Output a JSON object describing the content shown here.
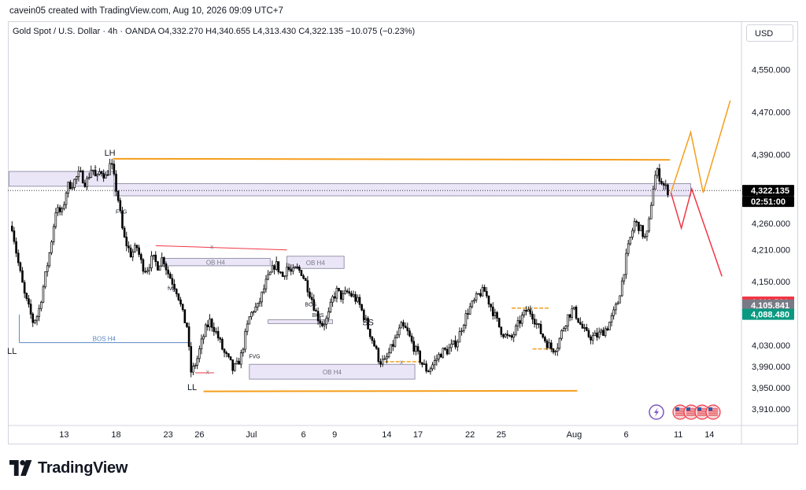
{
  "attribution": "cavein05 created with TradingView.com, Aug 10, 2026 09:09 UTC+7",
  "legend": "Gold Spot / U.S. Dollar · 4h · OANDA   O4,332.270  H4,340.655  L4,313.430  C4,322.135  −10.075 (−0.23%)",
  "currency": "USD",
  "brand": {
    "name": "TradingView",
    "logo_icon": "tradingview-logo-icon"
  },
  "colors": {
    "up": "#ffffff",
    "down": "#000000",
    "orange": "#f59e1b",
    "red": "#f23645",
    "blue": "#5b87c5",
    "zone": "#ebe6f7",
    "zone_border": "#7f7f99",
    "price_label": "#000000",
    "red_label": "#f23645",
    "gray_label": "#787b86",
    "green_label": "#089981"
  },
  "chart_data": {
    "type": "candlestick",
    "symbol": "Gold Spot / U.S. Dollar",
    "interval": "4h",
    "ylim": [
      3880,
      4600
    ],
    "y_ticks": [
      4550,
      4470,
      4390,
      4260,
      4210,
      4150,
      4030,
      3990,
      3950,
      3910
    ],
    "y_tick_labels": [
      "4,550.000",
      "4,470.000",
      "4,390.000",
      "4,260.000",
      "4,210.000",
      "4,150.000",
      "4,030.000",
      "3,990.000",
      "3,950.000",
      "3,910.000"
    ],
    "x_ticks": [
      "13",
      "18",
      "23",
      "26",
      "Jul",
      "6",
      "9",
      "14",
      "17",
      "22",
      "25",
      "Aug",
      "6",
      "11",
      "14"
    ],
    "x_tick_days": [
      -18,
      -13,
      -8,
      -5,
      0,
      5,
      8,
      13,
      16,
      21,
      24,
      31,
      36,
      41,
      44
    ],
    "x_range": [
      -23.4,
      47
    ],
    "price_labels": [
      {
        "text": "4,322.135",
        "value": 4322.135,
        "style": "price_label"
      },
      {
        "text": "02:51:00",
        "value": 4303,
        "style": "price_label"
      },
      {
        "text": "4,111.536",
        "value": 4111.536,
        "style": "red_label"
      },
      {
        "text": "4,105.841",
        "value": 4105.841,
        "style": "gray_label"
      },
      {
        "text": "4,088.480",
        "value": 4088.48,
        "style": "green_label"
      }
    ],
    "current_price": 4322.135,
    "anchors": [
      [
        -23.0,
        4255
      ],
      [
        -22.5,
        4195
      ],
      [
        -21.8,
        4125
      ],
      [
        -21.0,
        4075
      ],
      [
        -20.5,
        4088
      ],
      [
        -20.0,
        4140
      ],
      [
        -19.3,
        4215
      ],
      [
        -18.8,
        4285
      ],
      [
        -18.2,
        4280
      ],
      [
        -17.7,
        4330
      ],
      [
        -17.2,
        4335
      ],
      [
        -16.5,
        4355
      ],
      [
        -15.9,
        4335
      ],
      [
        -15.3,
        4368
      ],
      [
        -14.9,
        4340
      ],
      [
        -14.5,
        4362
      ],
      [
        -14.0,
        4348
      ],
      [
        -13.5,
        4375
      ],
      [
        -13.2,
        4345
      ],
      [
        -12.8,
        4305
      ],
      [
        -12.3,
        4235
      ],
      [
        -11.6,
        4202
      ],
      [
        -11.0,
        4215
      ],
      [
        -10.5,
        4180
      ],
      [
        -10.1,
        4172
      ],
      [
        -9.5,
        4195
      ],
      [
        -9.0,
        4180
      ],
      [
        -8.5,
        4197
      ],
      [
        -8.1,
        4170
      ],
      [
        -7.6,
        4150
      ],
      [
        -7.1,
        4130
      ],
      [
        -6.5,
        4080
      ],
      [
        -6.1,
        4062
      ],
      [
        -5.9,
        3978
      ],
      [
        -5.6,
        3985
      ],
      [
        -5.2,
        4005
      ],
      [
        -4.8,
        4035
      ],
      [
        -4.4,
        4060
      ],
      [
        -4.0,
        4075
      ],
      [
        -3.6,
        4063
      ],
      [
        -3.1,
        4040
      ],
      [
        -2.7,
        4018
      ],
      [
        -2.3,
        4005
      ],
      [
        -2.0,
        3995
      ],
      [
        -1.8,
        3984
      ],
      [
        -1.4,
        3992
      ],
      [
        -1.0,
        4010
      ],
      [
        -0.6,
        4048
      ],
      [
        -0.2,
        4082
      ],
      [
        0.2,
        4098
      ],
      [
        0.6,
        4102
      ],
      [
        1.0,
        4125
      ],
      [
        1.4,
        4148
      ],
      [
        1.9,
        4168
      ],
      [
        2.3,
        4185
      ],
      [
        2.7,
        4170
      ],
      [
        3.0,
        4160
      ],
      [
        3.4,
        4178
      ],
      [
        3.9,
        4165
      ],
      [
        4.3,
        4175
      ],
      [
        4.8,
        4168
      ],
      [
        5.3,
        4145
      ],
      [
        5.8,
        4118
      ],
      [
        6.3,
        4085
      ],
      [
        6.8,
        4070
      ],
      [
        7.3,
        4080
      ],
      [
        7.8,
        4118
      ],
      [
        8.2,
        4132
      ],
      [
        8.7,
        4120
      ],
      [
        9.2,
        4130
      ],
      [
        9.8,
        4122
      ],
      [
        10.3,
        4110
      ],
      [
        10.8,
        4085
      ],
      [
        11.3,
        4058
      ],
      [
        11.8,
        4030
      ],
      [
        12.3,
        4000
      ],
      [
        12.8,
        3998
      ],
      [
        13.3,
        4018
      ],
      [
        13.9,
        4045
      ],
      [
        14.4,
        4065
      ],
      [
        14.9,
        4058
      ],
      [
        15.4,
        4035
      ],
      [
        15.9,
        4015
      ],
      [
        16.4,
        3995
      ],
      [
        16.9,
        3982
      ],
      [
        17.3,
        3990
      ],
      [
        17.8,
        4005
      ],
      [
        18.3,
        4018
      ],
      [
        18.8,
        4020
      ],
      [
        19.3,
        4028
      ],
      [
        19.8,
        4040
      ],
      [
        20.3,
        4070
      ],
      [
        20.8,
        4095
      ],
      [
        21.4,
        4112
      ],
      [
        21.9,
        4128
      ],
      [
        22.4,
        4132
      ],
      [
        22.9,
        4108
      ],
      [
        23.4,
        4085
      ],
      [
        23.9,
        4060
      ],
      [
        24.4,
        4048
      ],
      [
        24.9,
        4040
      ],
      [
        25.4,
        4060
      ],
      [
        25.9,
        4080
      ],
      [
        26.4,
        4095
      ],
      [
        26.9,
        4092
      ],
      [
        27.4,
        4070
      ],
      [
        27.9,
        4050
      ],
      [
        28.4,
        4034
      ],
      [
        28.9,
        4022
      ],
      [
        29.4,
        4030
      ],
      [
        29.9,
        4060
      ],
      [
        30.4,
        4085
      ],
      [
        30.9,
        4098
      ],
      [
        31.3,
        4083
      ],
      [
        31.7,
        4065
      ],
      [
        32.2,
        4050
      ],
      [
        32.7,
        4045
      ],
      [
        33.2,
        4048
      ],
      [
        33.7,
        4055
      ],
      [
        34.2,
        4065
      ],
      [
        34.7,
        4085
      ],
      [
        35.2,
        4112
      ],
      [
        35.6,
        4150
      ],
      [
        36.0,
        4195
      ],
      [
        36.4,
        4232
      ],
      [
        36.8,
        4262
      ],
      [
        37.2,
        4255
      ],
      [
        37.6,
        4240
      ],
      [
        37.9,
        4228
      ],
      [
        38.2,
        4262
      ],
      [
        38.5,
        4318
      ],
      [
        38.9,
        4360
      ],
      [
        39.2,
        4348
      ],
      [
        39.6,
        4332
      ],
      [
        40.0,
        4322
      ]
    ],
    "levels": [
      {
        "kind": "orange-line",
        "from_day": -13.3,
        "to_day": 40.2,
        "price_from": 4382,
        "price_to": 4380
      },
      {
        "kind": "orange-line",
        "from_day": -4.6,
        "to_day": 31.3,
        "price_from": 3943,
        "price_to": 3944
      },
      {
        "kind": "zone",
        "from_day": -23.3,
        "to_day": -13.2,
        "top": 4358,
        "bottom": 4330
      },
      {
        "kind": "zone",
        "from_day": -13.2,
        "to_day": 42.2,
        "top": 4335,
        "bottom": 4312
      },
      {
        "kind": "zone",
        "from_day": -8.7,
        "to_day": 1.8,
        "top": 4194,
        "bottom": 4180,
        "label": "OB H4"
      },
      {
        "kind": "zone",
        "from_day": 3.4,
        "to_day": 8.9,
        "top": 4198,
        "bottom": 4175,
        "label": "OB H4"
      },
      {
        "kind": "zone",
        "from_day": -0.2,
        "to_day": 15.7,
        "top": 3994,
        "bottom": 3966,
        "label": "OB H4"
      },
      {
        "kind": "zone",
        "from_day": 1.6,
        "to_day": 7.8,
        "top": 4078,
        "bottom": 4071
      },
      {
        "kind": "blue-line",
        "from_day": -22.3,
        "to_day": -6.0,
        "price": 4035,
        "label": "BOS H4",
        "vertical_from": 4088
      },
      {
        "kind": "red-line",
        "from_day": -9.2,
        "to_day": 3.4,
        "price_from": 4218,
        "price_to": 4210
      },
      {
        "kind": "red-line",
        "from_day": -5.4,
        "to_day": -3.6,
        "price": 3978
      },
      {
        "kind": "orange-short",
        "from_day": 25.0,
        "to_day": 28.6,
        "price": 4100
      },
      {
        "kind": "orange-short",
        "from_day": 27.0,
        "to_day": 29.0,
        "price": 4023
      },
      {
        "kind": "orange-short",
        "from_day": 12.8,
        "to_day": 16.2,
        "price": 3999
      }
    ],
    "projections": [
      {
        "color": "orange",
        "points": [
          [
            40.3,
            4318
          ],
          [
            42.2,
            4432
          ],
          [
            43.4,
            4318
          ],
          [
            46.0,
            4492
          ]
        ]
      },
      {
        "color": "red",
        "points": [
          [
            40.3,
            4318
          ],
          [
            41.3,
            4251
          ],
          [
            42.3,
            4325
          ],
          [
            45.2,
            4160
          ]
        ]
      }
    ],
    "annotations": [
      {
        "text": "LH",
        "day": -13.6,
        "price": 4392
      },
      {
        "text": "LL",
        "day": -23.0,
        "price": 4018
      },
      {
        "text": "LL",
        "day": -5.7,
        "price": 3950
      },
      {
        "text": "fvg",
        "day": -7.7,
        "price": 4138
      },
      {
        "text": "FVG",
        "day": -12.5,
        "price": 4283
      },
      {
        "text": "FVG",
        "day": 0.3,
        "price": 4010
      },
      {
        "text": "BOS",
        "day": 5.7,
        "price": 4108
      },
      {
        "text": "BOS",
        "day": 6.4,
        "price": 4088
      },
      {
        "text": "x",
        "day": -15.0,
        "price": 4364
      },
      {
        "text": "x",
        "day": -3.8,
        "price": 4216
      },
      {
        "text": "x",
        "day": -4.2,
        "price": 3980
      },
      {
        "text": "x",
        "day": 8.0,
        "price": 4130
      },
      {
        "text": "x",
        "day": 14.4,
        "price": 3999
      },
      {
        "text": "x",
        "day": 26.9,
        "price": 4100
      },
      {
        "text": "SS",
        "day": 11.2,
        "price": 4072
      }
    ],
    "bottom_icons": [
      "lightning-icon",
      "us-flag-icon",
      "us-flag-icon",
      "us-flag-icon",
      "us-flag-icon"
    ]
  }
}
